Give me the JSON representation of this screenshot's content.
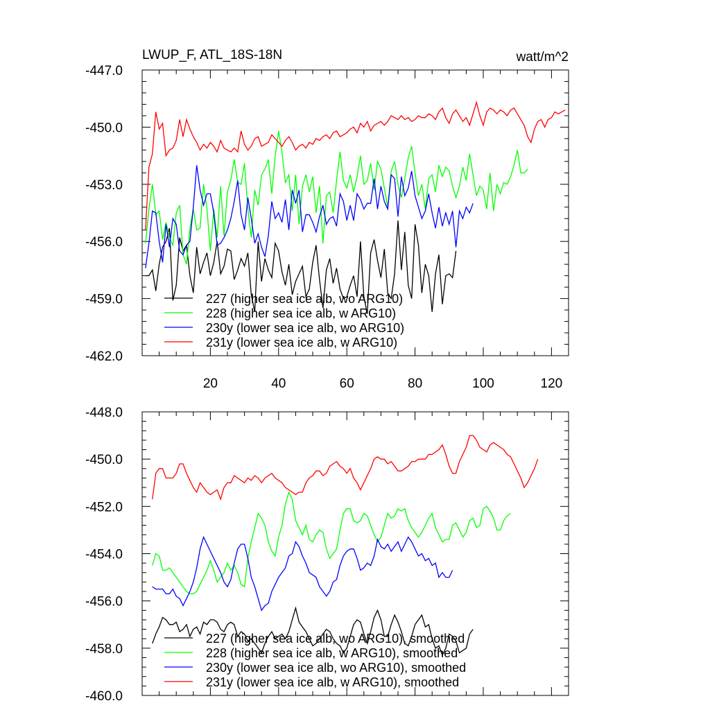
{
  "chart_data": [
    {
      "type": "line",
      "title": "LWUP_F, ATL_18S-18N",
      "units": "watt/m^2",
      "xlim": [
        0,
        125
      ],
      "ylim": [
        -462.0,
        -447.0
      ],
      "xticks": [
        20,
        40,
        60,
        80,
        100,
        120
      ],
      "yticks": [
        -447.0,
        -450.0,
        -453.0,
        -456.0,
        -459.0,
        -462.0
      ],
      "ytick_labels": [
        "-447.0",
        "-450.0",
        "-453.0",
        "-456.0",
        "-459.0",
        "-462.0"
      ],
      "xtick_labels": [
        "20",
        "40",
        "60",
        "80",
        "100",
        "120"
      ],
      "series": [
        {
          "name": "227 (higher sea ice alb, wo ARG10)",
          "color": "#000000",
          "x0": 1,
          "values": [
            -457.8,
            -457.8,
            -457.5,
            -458.6,
            -457.2,
            -456.3,
            -456.0,
            -455.3,
            -459.1,
            -458.3,
            -455.8,
            -456.5,
            -456.2,
            -457.8,
            -458.7,
            -456.3,
            -457.7,
            -457.1,
            -456.6,
            -457.8,
            -457.1,
            -456.0,
            -457.7,
            -457.3,
            -456.4,
            -456.5,
            -458.0,
            -457.5,
            -456.9,
            -457.3,
            -456.6,
            -458.8,
            -459.7,
            -456.0,
            -458.1,
            -456.9,
            -457.5,
            -457.9,
            -456.1,
            -456.5,
            -457.6,
            -458.3,
            -457.2,
            -458.8,
            -458.1,
            -457.7,
            -457.3,
            -458.9,
            -458.5,
            -457.1,
            -456.2,
            -458.0,
            -459.5,
            -457.5,
            -456.9,
            -458.2,
            -457.4,
            -458.5,
            -459.0,
            -458.9,
            -458.3,
            -457.8,
            -458.9,
            -456.0,
            -458.9,
            -459.8,
            -456.6,
            -455.9,
            -457.0,
            -457.9,
            -456.4,
            -458.7,
            -459.0,
            -457.7,
            -454.9,
            -457.5,
            -455.5,
            -458.3,
            -459.0,
            -455.1,
            -456.2,
            -458.7,
            -457.2,
            -457.8,
            -459.7,
            -457.7,
            -456.7,
            -459.3,
            -457.8,
            -457.7,
            -457.9,
            -456.5
          ]
        },
        {
          "name": "228 (higher sea ice alb, w ARG10)",
          "color": "#00ff00",
          "x0": 1,
          "values": [
            -456.1,
            -454.3,
            -453.0,
            -454.6,
            -454.4,
            -455.9,
            -455.0,
            -455.8,
            -456.2,
            -454.5,
            -454.1,
            -456.7,
            -457.2,
            -455.3,
            -454.3,
            -455.4,
            -455.3,
            -453.0,
            -454.3,
            -456.5,
            -454.3,
            -455.8,
            -453.1,
            -455.7,
            -453.4,
            -452.8,
            -451.7,
            -452.9,
            -453.0,
            -451.9,
            -454.3,
            -455.8,
            -453.3,
            -454.1,
            -452.5,
            -452.2,
            -451.7,
            -453.5,
            -451.5,
            -450.2,
            -451.3,
            -452.9,
            -452.5,
            -454.4,
            -452.5,
            -455.1,
            -453.1,
            -452.5,
            -453.4,
            -452.6,
            -454.5,
            -453.1,
            -456.1,
            -453.6,
            -453.4,
            -454.5,
            -452.8,
            -451.3,
            -452.8,
            -453.2,
            -452.5,
            -453.4,
            -452.6,
            -451.5,
            -453.0,
            -452.8,
            -451.9,
            -453.3,
            -451.8,
            -452.2,
            -453.2,
            -454.2,
            -452.3,
            -451.8,
            -453.0,
            -453.7,
            -452.7,
            -451.6,
            -451.0,
            -452.4,
            -453.6,
            -453.0,
            -454.3,
            -452.7,
            -452.5,
            -453.4,
            -452.0,
            -452.6,
            -452.1,
            -452.3,
            -453.1,
            -453.7,
            -453.1,
            -452.1,
            -452.8,
            -451.4,
            -452.5,
            -453.6,
            -453.1,
            -453.3,
            -454.3,
            -452.4,
            -454.4,
            -453.0,
            -453.5,
            -452.9,
            -453.0,
            -452.6,
            -452.0,
            -451.2,
            -452.4,
            -452.4,
            -452.2
          ]
        },
        {
          "name": "230y (lower sea ice alb, wo ARG10)",
          "color": "#0000ff",
          "x0": 1,
          "values": [
            -457.4,
            -456.1,
            -454.4,
            -454.5,
            -456.0,
            -457.1,
            -455.1,
            -456.3,
            -454.8,
            -455.1,
            -456.5,
            -456.7,
            -456.2,
            -456.0,
            -454.2,
            -452.0,
            -453.3,
            -454.1,
            -453.5,
            -453.5,
            -454.5,
            -456.2,
            -456.1,
            -455.8,
            -455.4,
            -454.8,
            -453.9,
            -452.8,
            -454.6,
            -455.4,
            -453.7,
            -454.8,
            -456.1,
            -455.6,
            -456.3,
            -456.8,
            -455.7,
            -453.9,
            -454.8,
            -454.5,
            -455.0,
            -453.8,
            -455.4,
            -453.3,
            -454.0,
            -453.3,
            -455.5,
            -454.6,
            -454.6,
            -455.0,
            -455.5,
            -454.7,
            -454.1,
            -455.1,
            -454.8,
            -454.7,
            -455.2,
            -453.5,
            -453.9,
            -454.9,
            -454.1,
            -454.9,
            -453.5,
            -453.8,
            -454.3,
            -454.0,
            -454.0,
            -452.7,
            -454.3,
            -453.1,
            -453.9,
            -454.3,
            -452.5,
            -452.7,
            -454.7,
            -452.6,
            -453.6,
            -453.2,
            -452.3,
            -453.6,
            -454.2,
            -454.8,
            -454.4,
            -453.5,
            -454.5,
            -455.3,
            -454.2,
            -455.2,
            -454.5,
            -455.1,
            -454.4,
            -456.3,
            -454.4,
            -454.8,
            -454.2,
            -454.5,
            -454.0
          ]
        },
        {
          "name": "231y (lower sea ice alb, w ARG10)",
          "color": "#ff0000",
          "x0": 1,
          "values": [
            -455.4,
            -452.1,
            -451.4,
            -449.2,
            -450.1,
            -449.8,
            -451.5,
            -451.2,
            -451.1,
            -450.7,
            -449.6,
            -450.5,
            -449.6,
            -450.1,
            -450.5,
            -450.8,
            -451.2,
            -450.9,
            -451.1,
            -450.8,
            -451.0,
            -451.3,
            -450.7,
            -451.1,
            -451.2,
            -451.3,
            -451.1,
            -451.3,
            -450.2,
            -450.9,
            -451.2,
            -451.0,
            -450.6,
            -450.5,
            -451.0,
            -450.9,
            -450.8,
            -450.4,
            -450.6,
            -450.8,
            -451.0,
            -450.7,
            -450.5,
            -450.8,
            -451.2,
            -451.0,
            -450.9,
            -451.1,
            -450.8,
            -450.9,
            -450.6,
            -450.7,
            -450.5,
            -450.4,
            -450.6,
            -450.3,
            -450.2,
            -450.5,
            -450.4,
            -450.3,
            -450.1,
            -450.0,
            -450.3,
            -449.8,
            -450.0,
            -449.7,
            -450.2,
            -449.9,
            -449.8,
            -449.7,
            -449.9,
            -449.7,
            -449.4,
            -449.5,
            -449.6,
            -449.4,
            -449.6,
            -449.5,
            -449.7,
            -449.6,
            -449.4,
            -449.5,
            -449.5,
            -449.3,
            -449.4,
            -449.6,
            -449.2,
            -449.0,
            -449.5,
            -449.8,
            -449.3,
            -449.1,
            -449.4,
            -449.7,
            -449.5,
            -449.9,
            -449.3,
            -448.7,
            -449.4,
            -449.9,
            -449.2,
            -449.0,
            -449.1,
            -449.3,
            -449.1,
            -449.2,
            -449.4,
            -449.1,
            -449.0,
            -449.3,
            -449.6,
            -449.9,
            -450.5,
            -450.8,
            -450.1,
            -449.7,
            -449.6,
            -450.0,
            -449.6,
            -449.5,
            -449.2,
            -449.3,
            -449.2,
            -449.1
          ]
        }
      ],
      "legend": "bottom-left"
    },
    {
      "type": "line",
      "xlim": [
        0,
        125
      ],
      "ylim": [
        -460.0,
        -448.0
      ],
      "yticks": [
        -448.0,
        -450.0,
        -452.0,
        -454.0,
        -456.0,
        -458.0,
        -460.0
      ],
      "ytick_labels": [
        "-448.0",
        "-450.0",
        "-452.0",
        "-454.0",
        "-456.0",
        "-458.0",
        "-460.0"
      ],
      "series": [
        {
          "name": "227 (higher sea ice alb, wo ARG10), smoothed",
          "color": "#000000",
          "x0": 3,
          "values": [
            -457.8,
            -457.4,
            -457.1,
            -456.7,
            -456.8,
            -457.0,
            -457.0,
            -456.9,
            -457.3,
            -457.2,
            -457.0,
            -457.5,
            -457.2,
            -457.1,
            -457.4,
            -456.9,
            -457.0,
            -456.8,
            -456.8,
            -456.9,
            -457.2,
            -457.3,
            -457.0,
            -456.9,
            -457.0,
            -457.5,
            -457.3,
            -457.4,
            -457.7,
            -457.6,
            -457.8,
            -458.0,
            -458.2,
            -457.8,
            -457.5,
            -457.3,
            -457.6,
            -457.5,
            -457.4,
            -457.6,
            -457.3,
            -456.8,
            -456.3,
            -456.9,
            -457.1,
            -457.3,
            -457.6,
            -457.9,
            -457.8,
            -457.6,
            -457.4,
            -457.2,
            -457.3,
            -457.6,
            -457.8,
            -457.9,
            -458.2,
            -458.0,
            -457.5,
            -457.0,
            -456.8,
            -456.9,
            -457.4,
            -457.8,
            -457.3,
            -456.7,
            -456.4,
            -456.8,
            -457.5,
            -457.5,
            -457.0,
            -456.6,
            -456.9,
            -457.3,
            -457.8,
            -457.9,
            -457.5,
            -457.0,
            -456.8,
            -456.6,
            -457.1,
            -457.0,
            -457.6,
            -458.0,
            -457.9,
            -458.3,
            -458.0,
            -457.4,
            -457.5,
            -457.7,
            -458.2,
            -458.1,
            -458.0,
            -457.4,
            -457.2
          ]
        },
        {
          "name": "228 (higher sea ice alb, w ARG10), smoothed",
          "color": "#00ff00",
          "x0": 3,
          "values": [
            -454.5,
            -454.0,
            -454.1,
            -454.7,
            -454.7,
            -454.6,
            -454.8,
            -455.0,
            -455.2,
            -455.4,
            -455.6,
            -455.7,
            -455.7,
            -455.6,
            -455.3,
            -455.0,
            -454.7,
            -454.3,
            -454.7,
            -455.2,
            -455.0,
            -454.8,
            -454.4,
            -454.7,
            -454.5,
            -454.8,
            -455.3,
            -455.4,
            -454.2,
            -453.5,
            -452.9,
            -452.3,
            -452.5,
            -452.8,
            -453.5,
            -453.9,
            -454.1,
            -453.3,
            -452.8,
            -451.9,
            -451.4,
            -451.7,
            -452.6,
            -452.9,
            -453.2,
            -452.8,
            -453.4,
            -453.5,
            -453.2,
            -453.0,
            -453.1,
            -453.8,
            -454.2,
            -454.0,
            -453.8,
            -453.0,
            -452.3,
            -452.1,
            -452.1,
            -452.6,
            -452.7,
            -452.6,
            -452.3,
            -452.4,
            -452.8,
            -453.2,
            -453.5,
            -453.3,
            -452.8,
            -452.3,
            -452.5,
            -452.4,
            -452.1,
            -452.2,
            -452.1,
            -452.6,
            -452.9,
            -453.1,
            -453.3,
            -453.1,
            -452.8,
            -452.5,
            -452.3,
            -452.9,
            -453.2,
            -453.5,
            -453.4,
            -453.4,
            -452.8,
            -452.7,
            -453.0,
            -453.3,
            -453.1,
            -452.6,
            -452.5,
            -452.9,
            -452.8,
            -452.1,
            -452.0,
            -452.2,
            -452.5,
            -453.0,
            -453.0,
            -452.6,
            -452.4,
            -452.3
          ]
        },
        {
          "name": "230y (lower sea ice alb, wo ARG10), smoothed",
          "color": "#0000ff",
          "x0": 3,
          "values": [
            -455.4,
            -455.5,
            -455.5,
            -455.5,
            -455.7,
            -455.7,
            -455.5,
            -455.8,
            -455.9,
            -456.2,
            -455.9,
            -455.6,
            -455.2,
            -454.6,
            -453.8,
            -453.3,
            -453.6,
            -453.9,
            -454.2,
            -454.5,
            -454.8,
            -455.2,
            -455.4,
            -455.1,
            -454.4,
            -453.8,
            -453.6,
            -453.6,
            -454.2,
            -455.0,
            -455.4,
            -455.9,
            -456.4,
            -456.2,
            -456.1,
            -455.6,
            -455.3,
            -455.0,
            -454.8,
            -454.6,
            -454.1,
            -454.0,
            -453.5,
            -453.7,
            -454.1,
            -454.4,
            -454.8,
            -454.9,
            -455.0,
            -455.4,
            -455.6,
            -455.8,
            -455.6,
            -455.2,
            -455.1,
            -454.5,
            -454.1,
            -453.9,
            -453.8,
            -453.8,
            -454.2,
            -454.7,
            -454.6,
            -454.4,
            -454.5,
            -454.1,
            -453.4,
            -453.7,
            -453.8,
            -453.6,
            -453.9,
            -453.7,
            -453.5,
            -453.9,
            -453.6,
            -453.3,
            -453.5,
            -453.8,
            -454.1,
            -454.0,
            -454.3,
            -454.2,
            -454.5,
            -454.4,
            -455.0,
            -454.8,
            -455.0,
            -455.0,
            -454.7
          ]
        },
        {
          "name": "231y (lower sea ice alb, w ARG10), smoothed",
          "color": "#ff0000",
          "x0": 3,
          "values": [
            -451.7,
            -450.6,
            -450.4,
            -450.4,
            -450.8,
            -450.8,
            -450.8,
            -450.6,
            -450.2,
            -450.2,
            -450.6,
            -450.9,
            -451.2,
            -451.4,
            -451.0,
            -451.2,
            -451.4,
            -451.5,
            -451.4,
            -451.3,
            -451.7,
            -451.2,
            -451.0,
            -451.0,
            -450.7,
            -450.8,
            -450.9,
            -451.0,
            -450.8,
            -450.9,
            -450.7,
            -450.8,
            -451.0,
            -450.8,
            -450.7,
            -450.6,
            -450.8,
            -450.9,
            -451.0,
            -451.2,
            -451.3,
            -451.4,
            -451.5,
            -451.4,
            -451.4,
            -451.0,
            -450.8,
            -450.7,
            -450.5,
            -450.5,
            -450.7,
            -450.6,
            -450.3,
            -450.2,
            -450.1,
            -450.3,
            -450.4,
            -450.6,
            -450.4,
            -450.8,
            -451.0,
            -451.3,
            -451.0,
            -450.7,
            -450.4,
            -450.0,
            -449.9,
            -450.0,
            -450.0,
            -450.2,
            -450.1,
            -450.3,
            -450.5,
            -450.5,
            -450.4,
            -450.3,
            -450.1,
            -450.1,
            -450.0,
            -450.0,
            -450.0,
            -449.8,
            -449.8,
            -449.7,
            -449.6,
            -449.4,
            -449.8,
            -450.3,
            -450.6,
            -450.6,
            -450.1,
            -449.8,
            -449.5,
            -449.0,
            -449.0,
            -449.2,
            -449.5,
            -449.6,
            -449.7,
            -449.4,
            -449.3,
            -449.4,
            -449.5,
            -449.6,
            -449.8,
            -449.9,
            -450.2,
            -450.5,
            -450.8,
            -451.2,
            -451.0,
            -450.7,
            -450.4,
            -450.0
          ]
        }
      ],
      "legend": "bottom-left"
    }
  ]
}
